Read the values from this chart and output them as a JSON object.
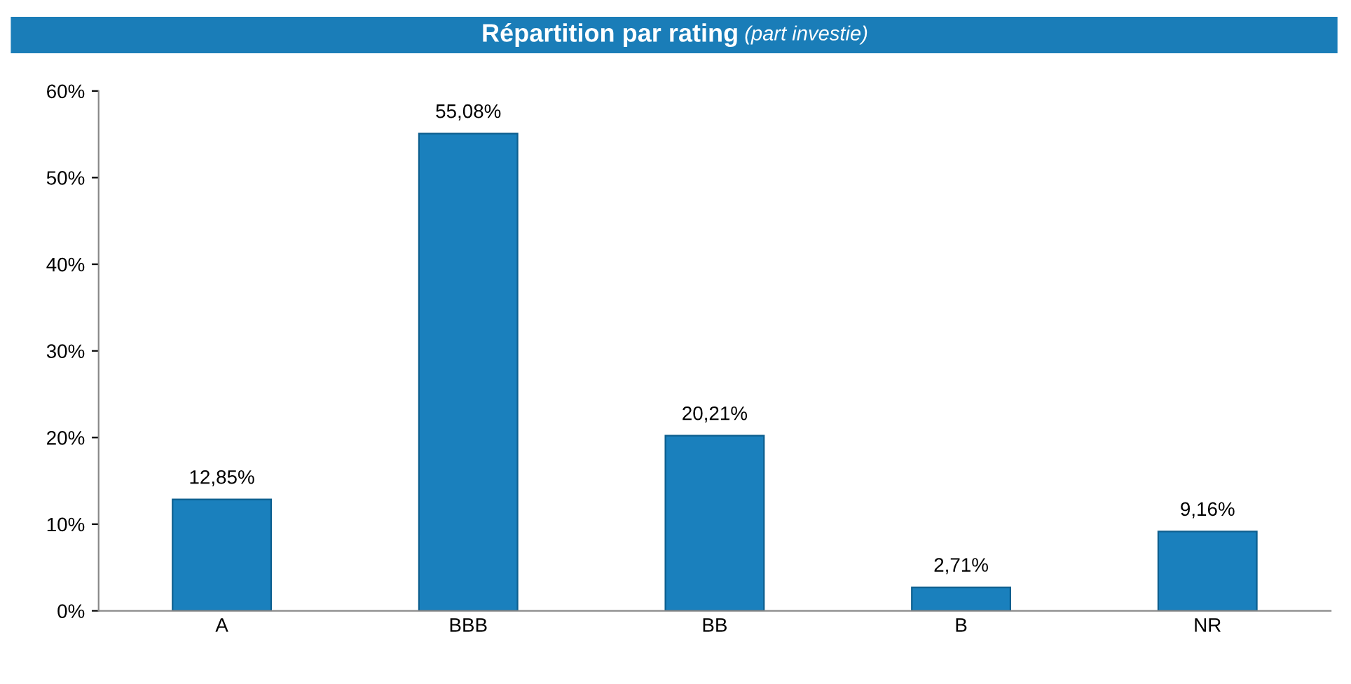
{
  "chart_data": {
    "type": "bar",
    "title": "Répartition par rating",
    "subtitle": "(part investie)",
    "categories": [
      "A",
      "BBB",
      "BB",
      "B",
      "NR"
    ],
    "values": [
      12.85,
      55.08,
      20.21,
      2.71,
      9.16
    ],
    "value_labels": [
      "12,85%",
      "55,08%",
      "20,21%",
      "2,71%",
      "9,16%"
    ],
    "color": "#1a80bd",
    "ylim": [
      0,
      60
    ],
    "yticks": [
      {
        "value": 0,
        "label": "0%"
      },
      {
        "value": 10,
        "label": "10%"
      },
      {
        "value": 20,
        "label": "20%"
      },
      {
        "value": 30,
        "label": "30%"
      },
      {
        "value": 40,
        "label": "40%"
      },
      {
        "value": 50,
        "label": "50%"
      },
      {
        "value": 60,
        "label": "60%"
      }
    ],
    "grid": false,
    "legend": false
  }
}
